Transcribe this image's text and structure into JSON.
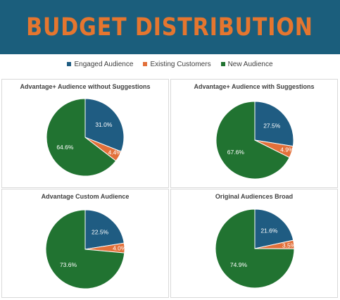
{
  "page": {
    "title": "BUDGET DISTRIBUTION",
    "colors": {
      "banner_bg": "#1b5e7c",
      "title_text": "#e5762f",
      "engaged": "#1f5c82",
      "existing": "#e2703a",
      "new": "#217331"
    }
  },
  "legend": [
    {
      "label": "Engaged Audience",
      "color": "#1f5c82"
    },
    {
      "label": "Existing Customers",
      "color": "#e2703a"
    },
    {
      "label": "New Audience",
      "color": "#217331"
    }
  ],
  "chart_data": [
    {
      "type": "pie",
      "title": "Advantage+ Audience without Suggestions",
      "categories": [
        "Engaged Audience",
        "Existing Customers",
        "New Audience"
      ],
      "values": [
        31.0,
        4.4,
        64.6
      ],
      "labels": [
        "31.0%",
        "4.4%",
        "64.6%"
      ]
    },
    {
      "type": "pie",
      "title": "Advantage+ Audience with Suggestions",
      "categories": [
        "Engaged Audience",
        "Existing Customers",
        "New Audience"
      ],
      "values": [
        27.5,
        4.9,
        67.6
      ],
      "labels": [
        "27.5%",
        "4.9%",
        "67.6%"
      ]
    },
    {
      "type": "pie",
      "title": "Advantage Custom Audience",
      "categories": [
        "Engaged Audience",
        "Existing Customers",
        "New Audience"
      ],
      "values": [
        22.5,
        4.0,
        73.6
      ],
      "labels": [
        "22.5%",
        "4.0%",
        "73.6%"
      ]
    },
    {
      "type": "pie",
      "title": "Original Audiences Broad",
      "categories": [
        "Engaged Audience",
        "Existing Customers",
        "New Audience"
      ],
      "values": [
        21.6,
        3.5,
        74.9
      ],
      "labels": [
        "21.6%",
        "3.5%",
        "74.9%"
      ]
    }
  ]
}
